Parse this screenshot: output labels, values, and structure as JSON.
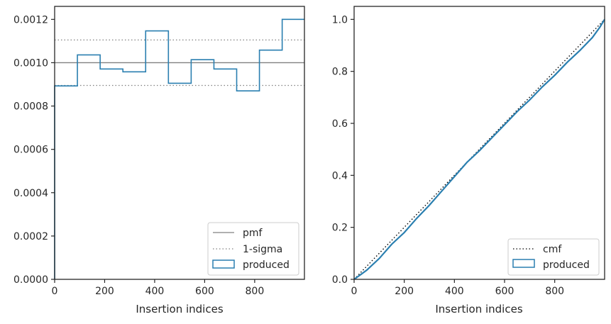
{
  "chart_data": [
    {
      "type": "line",
      "title": "",
      "xlabel": "Insertion indices",
      "ylabel": "",
      "xlim": [
        0,
        999
      ],
      "ylim": [
        0,
        0.00126
      ],
      "xticks": [
        0,
        200,
        400,
        600,
        800
      ],
      "xtick_labels": [
        "0",
        "200",
        "400",
        "600",
        "800"
      ],
      "yticks": [
        0,
        0.0002,
        0.0004,
        0.0006,
        0.0008,
        0.001,
        0.0012
      ],
      "ytick_labels": [
        "0.0000",
        "0.0002",
        "0.0004",
        "0.0006",
        "0.0008",
        "0.0010",
        "0.0012"
      ],
      "legend_position": "lower-right",
      "series": [
        {
          "name": "pmf",
          "kind": "hline",
          "y": 0.001,
          "color": "#808080",
          "style": "solid"
        },
        {
          "name": "1-sigma",
          "kind": "hlines",
          "y": [
            0.000895,
            0.001105
          ],
          "color": "#808080",
          "style": "dotted"
        },
        {
          "name": "produced",
          "kind": "step",
          "color": "#2a7fb0",
          "bin_edges": [
            0,
            91,
            182,
            273,
            364,
            455,
            546,
            637,
            728,
            819,
            910,
            999
          ],
          "values": [
            0.000893,
            0.001036,
            0.000971,
            0.000958,
            0.001147,
            0.000905,
            0.001014,
            0.000971,
            0.00087,
            0.001058,
            0.0012
          ]
        }
      ]
    },
    {
      "type": "line",
      "title": "",
      "xlabel": "Insertion indices",
      "ylabel": "",
      "xlim": [
        0,
        999
      ],
      "ylim": [
        0,
        1.05
      ],
      "xticks": [
        0,
        200,
        400,
        600,
        800
      ],
      "xtick_labels": [
        "0",
        "200",
        "400",
        "600",
        "800"
      ],
      "yticks": [
        0,
        0.2,
        0.4,
        0.6,
        0.8,
        1.0
      ],
      "ytick_labels": [
        "0.0",
        "0.2",
        "0.4",
        "0.6",
        "0.8",
        "1.0"
      ],
      "legend_position": "lower-right",
      "series": [
        {
          "name": "cmf",
          "kind": "line",
          "color": "#000000",
          "style": "dotted",
          "x": [
            0,
            999
          ],
          "y": [
            0,
            1.0
          ]
        },
        {
          "name": "produced",
          "kind": "line",
          "color": "#2a7fb0",
          "x": [
            0,
            50,
            100,
            150,
            200,
            250,
            300,
            350,
            400,
            450,
            500,
            550,
            600,
            650,
            700,
            750,
            800,
            850,
            900,
            950,
            980,
            999
          ],
          "y": [
            0,
            0.035,
            0.08,
            0.135,
            0.18,
            0.235,
            0.285,
            0.34,
            0.395,
            0.45,
            0.495,
            0.545,
            0.595,
            0.645,
            0.69,
            0.74,
            0.785,
            0.835,
            0.88,
            0.93,
            0.97,
            1.0
          ]
        }
      ]
    }
  ]
}
